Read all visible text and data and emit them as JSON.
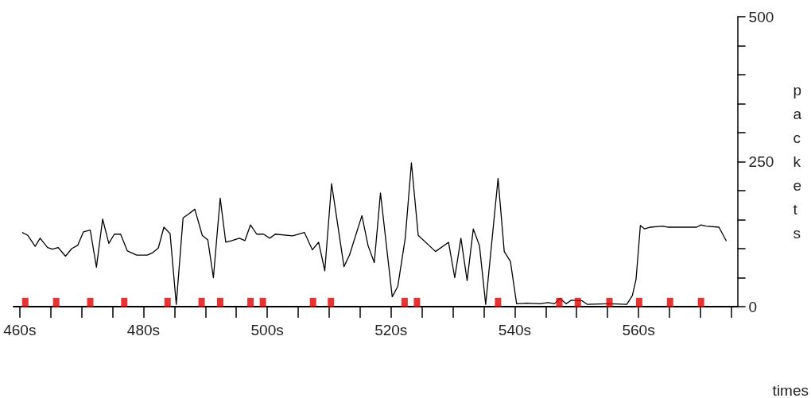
{
  "chart_data": {
    "type": "line",
    "xlabel": "times",
    "ylabel": "packets",
    "xlim": [
      459,
      576
    ],
    "ylim": [
      0,
      500
    ],
    "xticks": [
      {
        "value": 460,
        "label": "460s"
      },
      {
        "value": 465,
        "label": null
      },
      {
        "value": 470,
        "label": null
      },
      {
        "value": 475,
        "label": null
      },
      {
        "value": 480,
        "label": "480s"
      },
      {
        "value": 485,
        "label": null
      },
      {
        "value": 490,
        "label": null
      },
      {
        "value": 495,
        "label": null
      },
      {
        "value": 500,
        "label": "500s"
      },
      {
        "value": 505,
        "label": null
      },
      {
        "value": 510,
        "label": null
      },
      {
        "value": 515,
        "label": null
      },
      {
        "value": 520,
        "label": "520s"
      },
      {
        "value": 525,
        "label": null
      },
      {
        "value": 530,
        "label": null
      },
      {
        "value": 535,
        "label": null
      },
      {
        "value": 540,
        "label": "540s"
      },
      {
        "value": 545,
        "label": null
      },
      {
        "value": 550,
        "label": null
      },
      {
        "value": 555,
        "label": null
      },
      {
        "value": 560,
        "label": "560s"
      },
      {
        "value": 565,
        "label": null
      },
      {
        "value": 570,
        "label": null
      },
      {
        "value": 575,
        "label": null
      }
    ],
    "yticks": [
      0,
      {
        "value": 50,
        "label": null
      },
      {
        "value": 100,
        "label": null
      },
      {
        "value": 150,
        "label": null
      },
      {
        "value": 200,
        "label": null
      },
      250,
      {
        "value": 300,
        "label": null
      },
      {
        "value": 350,
        "label": null
      },
      {
        "value": 400,
        "label": null
      },
      {
        "value": 450,
        "label": null
      },
      500
    ],
    "grid": false,
    "series": [
      {
        "color": "#000000",
        "marker": "none",
        "line_style": "solid",
        "x": [
          460.4,
          461.3,
          462.5,
          463.3,
          464.5,
          465.3,
          466.2,
          467.4,
          468.4,
          469.4,
          470.3,
          471.4,
          472.4,
          473.4,
          474.4,
          475.3,
          476.3,
          477.4,
          478.9,
          480.6,
          481.5,
          482.4,
          483.3,
          484.3,
          485.3,
          486.4,
          487.2,
          488.3,
          489.5,
          490.4,
          491.3,
          492.4,
          493.3,
          494.3,
          495.5,
          496.4,
          497.3,
          498.3,
          499.4,
          500.4,
          501.3,
          504.1,
          506.0,
          507.3,
          508.3,
          509.3,
          510.4,
          512.4,
          513.3,
          515.3,
          516.3,
          517.3,
          518.3,
          520.2,
          521.1,
          522.3,
          523.3,
          524.4,
          527.2,
          529.3,
          530.3,
          531.3,
          532.3,
          533.3,
          534.3,
          535.3,
          537.3,
          538.3,
          539.3,
          540.3,
          541.9,
          544.1,
          545.4,
          546.4,
          547.3,
          548.3,
          549.1,
          550.9,
          551.7,
          555.6,
          558.1,
          559.0,
          559.6,
          560.3,
          561.0,
          561.9,
          563.9,
          564.7,
          569.4,
          570.1,
          570.9,
          573.0,
          574.2
        ],
        "values": [
          128,
          123,
          104,
          118,
          102,
          99,
          102,
          87,
          100,
          106,
          129,
          132,
          68,
          151,
          109,
          125,
          125,
          96,
          89,
          89,
          93,
          101,
          137,
          126,
          4,
          153,
          159,
          168,
          123,
          115,
          50,
          187,
          111,
          114,
          118,
          114,
          141,
          125,
          125,
          118,
          125,
          122,
          128,
          98,
          111,
          62,
          212,
          69,
          89,
          157,
          105,
          76,
          196,
          17,
          35,
          118,
          248,
          123,
          95,
          111,
          50,
          118,
          45,
          134,
          105,
          4,
          221,
          95,
          78,
          5,
          6,
          5,
          7,
          5,
          14,
          5,
          11,
          10,
          4,
          5,
          4,
          19,
          47,
          140,
          134,
          137,
          139,
          137,
          137,
          141,
          139,
          137,
          113
        ]
      },
      {
        "type": "scatter",
        "color": "#e00000",
        "marker": "square",
        "x": [
          460.9,
          465.9,
          471.4,
          476.9,
          483.9,
          489.4,
          492.4,
          497.3,
          499.3,
          507.4,
          510.3,
          522.2,
          524.2,
          537.3,
          547.2,
          550.2,
          555.3,
          560.1,
          565.1,
          570.1
        ],
        "values": [
          7,
          7,
          7,
          7,
          7,
          7,
          7,
          7,
          7,
          7,
          7,
          7,
          7,
          7,
          7,
          7,
          7,
          7,
          7,
          7
        ]
      }
    ]
  }
}
